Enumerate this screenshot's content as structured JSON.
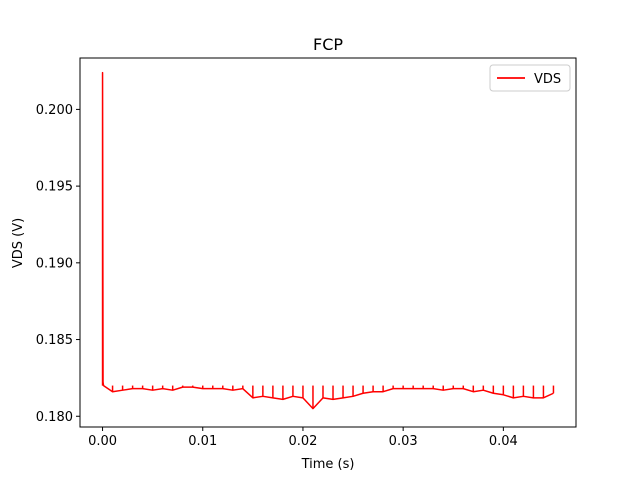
{
  "chart_data": {
    "type": "line",
    "title": "FCP",
    "xlabel": "Time (s)",
    "ylabel": "VDS (V)",
    "xlim": [
      -0.00225,
      0.04725
    ],
    "ylim": [
      0.1793,
      0.20335
    ],
    "xticks": [
      0.0,
      0.01,
      0.02,
      0.03,
      0.04
    ],
    "xtick_labels": [
      "0.00",
      "0.01",
      "0.02",
      "0.03",
      "0.04"
    ],
    "yticks": [
      0.18,
      0.185,
      0.19,
      0.195,
      0.2
    ],
    "ytick_labels": [
      "0.180",
      "0.185",
      "0.190",
      "0.195",
      "0.200"
    ],
    "grid": false,
    "legend": {
      "position": "top-right"
    },
    "series": [
      {
        "name": "VDS",
        "color": "#ff0000",
        "x": [
          0.0,
          0.0,
          5e-05,
          0.0001,
          0.001,
          0.002,
          0.003,
          0.004,
          0.005,
          0.006,
          0.007,
          0.008,
          0.009,
          0.01,
          0.011,
          0.012,
          0.013,
          0.014,
          0.015,
          0.016,
          0.017,
          0.018,
          0.019,
          0.02,
          0.021,
          0.022,
          0.023,
          0.024,
          0.025,
          0.026,
          0.027,
          0.028,
          0.029,
          0.03,
          0.031,
          0.032,
          0.033,
          0.034,
          0.035,
          0.036,
          0.037,
          0.038,
          0.039,
          0.04,
          0.041,
          0.042,
          0.043,
          0.044,
          0.045
        ],
        "y": [
          0.182,
          0.2024,
          0.1822,
          0.182,
          0.1816,
          0.1817,
          0.1818,
          0.1818,
          0.1817,
          0.1818,
          0.1817,
          0.1819,
          0.1819,
          0.1818,
          0.1818,
          0.1818,
          0.1817,
          0.1818,
          0.1812,
          0.1813,
          0.1812,
          0.1811,
          0.1813,
          0.1812,
          0.1805,
          0.1812,
          0.1811,
          0.1812,
          0.1813,
          0.1815,
          0.1816,
          0.1816,
          0.1818,
          0.1818,
          0.1818,
          0.1818,
          0.1818,
          0.1817,
          0.1818,
          0.1818,
          0.1816,
          0.1817,
          0.1815,
          0.1814,
          0.1812,
          0.1813,
          0.1812,
          0.1812,
          0.1815
        ]
      }
    ]
  }
}
